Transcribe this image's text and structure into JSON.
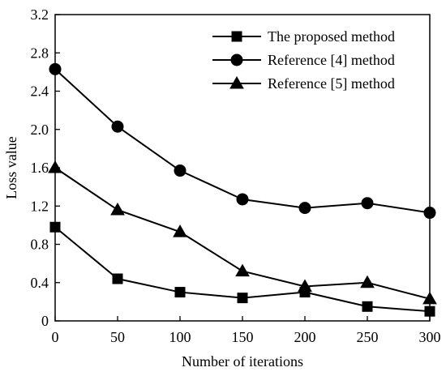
{
  "chart_data": {
    "type": "line",
    "title": "",
    "xlabel": "Number of iterations",
    "ylabel": "Loss value",
    "x": [
      0,
      50,
      100,
      150,
      200,
      250,
      300
    ],
    "xlim": [
      0,
      300
    ],
    "ylim": [
      0,
      3.2
    ],
    "xticks": [
      0,
      50,
      100,
      150,
      200,
      250,
      300
    ],
    "xtick_labels": [
      "0",
      "50",
      "100",
      "150",
      "200",
      "250",
      "300"
    ],
    "yticks": [
      0,
      0.4,
      0.8,
      1.2,
      1.6,
      2.0,
      2.4,
      2.8,
      3.2
    ],
    "ytick_labels": [
      "0",
      "0.4",
      "0.8",
      "1.2",
      "1.6",
      "2.0",
      "2.4",
      "2.8",
      "3.2"
    ],
    "grid": false,
    "legend_position": "top-right",
    "series": [
      {
        "name": "The proposed method",
        "marker": "square",
        "color": "#000000",
        "values": [
          0.98,
          0.44,
          0.3,
          0.24,
          0.3,
          0.15,
          0.1
        ]
      },
      {
        "name": "Reference [4] method",
        "marker": "circle",
        "color": "#000000",
        "values": [
          2.63,
          2.03,
          1.57,
          1.27,
          1.18,
          1.23,
          1.13
        ]
      },
      {
        "name": "Reference [5] method",
        "marker": "triangle",
        "color": "#000000",
        "values": [
          1.6,
          1.16,
          0.93,
          0.52,
          0.36,
          0.4,
          0.23
        ]
      }
    ]
  }
}
